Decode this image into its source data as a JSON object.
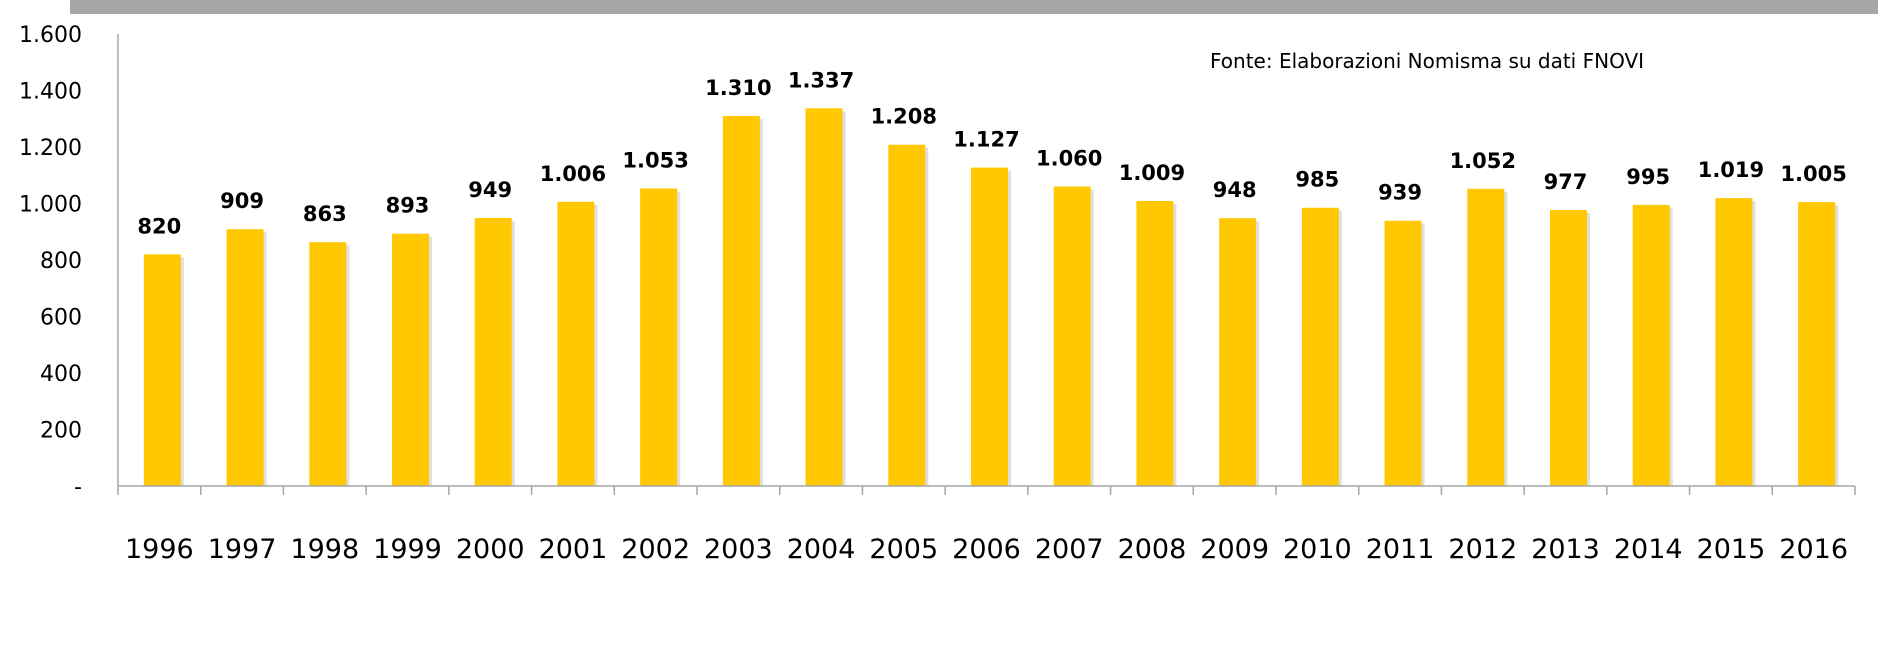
{
  "chart_data": {
    "type": "bar",
    "title": "",
    "xlabel": "",
    "ylabel": "",
    "ylim": [
      0,
      1600
    ],
    "yticks": [
      {
        "value": 0,
        "label": "-"
      },
      {
        "value": 200,
        "label": "200"
      },
      {
        "value": 400,
        "label": "400"
      },
      {
        "value": 600,
        "label": "600"
      },
      {
        "value": 800,
        "label": "800"
      },
      {
        "value": 1000,
        "label": "1.000"
      },
      {
        "value": 1200,
        "label": "1.200"
      },
      {
        "value": 1400,
        "label": "1.400"
      },
      {
        "value": 1600,
        "label": "1.600"
      }
    ],
    "categories": [
      "1996",
      "1997",
      "1998",
      "1999",
      "2000",
      "2001",
      "2002",
      "2003",
      "2004",
      "2005",
      "2006",
      "2007",
      "2008",
      "2009",
      "2010",
      "2011",
      "2012",
      "2013",
      "2014",
      "2015",
      "2016"
    ],
    "values": [
      820,
      909,
      863,
      893,
      949,
      1006,
      1053,
      1310,
      1337,
      1208,
      1127,
      1060,
      1009,
      948,
      985,
      939,
      1052,
      977,
      995,
      1019,
      1005
    ],
    "data_labels": [
      "820",
      "909",
      "863",
      "893",
      "949",
      "1.006",
      "1.053",
      "1.310",
      "1.337",
      "1.208",
      "1.127",
      "1.060",
      "1.009",
      "948",
      "985",
      "939",
      "1.052",
      "977",
      "995",
      "1.019",
      "1.005"
    ],
    "annotation": "Fonte: Elaborazioni Nomisma su dati FNOVI",
    "grid": false,
    "legend": "none",
    "colors": {
      "bar": "#FFC800",
      "bar_shadow": "#C9C9C9",
      "axis": "#A6A6A6",
      "header_band": "#A6A6A6"
    }
  }
}
